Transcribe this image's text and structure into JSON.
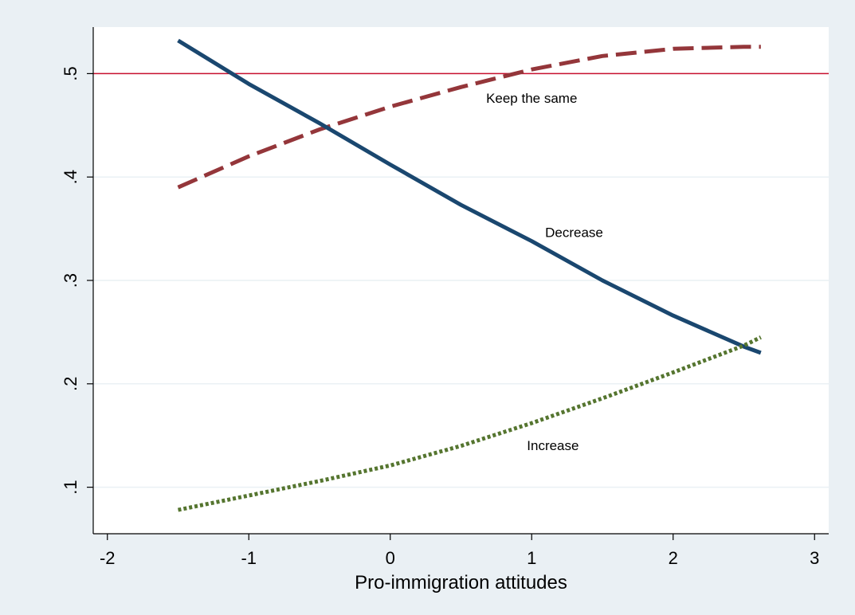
{
  "chart_data": {
    "type": "line",
    "title": "",
    "xlabel": "Pro-immigration attitudes",
    "ylabel": "",
    "xlim": [
      -2.1,
      3.1
    ],
    "ylim": [
      0.055,
      0.545
    ],
    "x_ticks": [
      -2,
      -1,
      0,
      1,
      2,
      3
    ],
    "x_tick_labels": [
      "-2",
      "-1",
      "0",
      "1",
      "2",
      "3"
    ],
    "y_ticks": [
      0.1,
      0.2,
      0.3,
      0.4,
      0.5
    ],
    "y_tick_labels": [
      ".1",
      ".2",
      ".3",
      ".4",
      ".5"
    ],
    "grid": "horizontal",
    "reference_line": {
      "y": 0.5,
      "color": "#c8102e"
    },
    "legend": "none",
    "series": [
      {
        "name": "Keep the same",
        "color": "#94363a",
        "style": "dashed",
        "x": [
          -1.5,
          -1.0,
          -0.5,
          0.0,
          0.5,
          1.0,
          1.5,
          2.0,
          2.5,
          2.62
        ],
        "y": [
          0.39,
          0.42,
          0.446,
          0.468,
          0.487,
          0.504,
          0.517,
          0.524,
          0.526,
          0.526
        ]
      },
      {
        "name": "Decrease",
        "color": "#1a476f",
        "style": "solid",
        "x": [
          -1.5,
          -1.0,
          -0.5,
          0.0,
          0.5,
          1.0,
          1.5,
          2.0,
          2.5,
          2.62
        ],
        "y": [
          0.532,
          0.49,
          0.452,
          0.412,
          0.373,
          0.338,
          0.3,
          0.266,
          0.236,
          0.23
        ]
      },
      {
        "name": "Increase",
        "color": "#55752f",
        "style": "dotted",
        "x": [
          -1.5,
          -1.0,
          -0.5,
          0.0,
          0.5,
          1.0,
          1.5,
          2.0,
          2.5,
          2.62
        ],
        "y": [
          0.078,
          0.092,
          0.106,
          0.121,
          0.14,
          0.162,
          0.186,
          0.211,
          0.237,
          0.245
        ]
      }
    ],
    "annotations": [
      {
        "text": "Keep the same",
        "x": 1.0,
        "y": 0.472,
        "series": "Keep the same"
      },
      {
        "text": "Decrease",
        "x": 1.3,
        "y": 0.342,
        "series": "Decrease"
      },
      {
        "text": "Increase",
        "x": 1.15,
        "y": 0.136,
        "series": "Increase"
      }
    ]
  }
}
